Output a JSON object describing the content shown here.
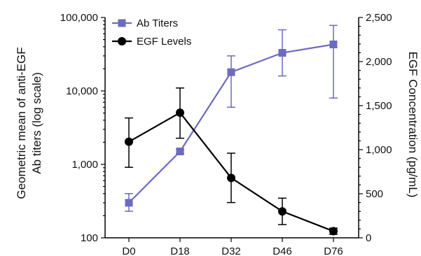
{
  "chart_data": {
    "type": "line",
    "categories": [
      "D0",
      "D18",
      "D32",
      "D46",
      "D76"
    ],
    "y_left": {
      "label_lines": [
        "Geometric mean of anti-EGF",
        "Ab titers (log scale)"
      ],
      "scale": "log",
      "range": [
        100,
        100000
      ],
      "ticks": [
        100,
        1000,
        10000,
        100000
      ],
      "tick_labels": [
        "100",
        "1,000",
        "10,000",
        "100,000"
      ]
    },
    "y_right": {
      "label": "EGF Concentration (pg/mL)",
      "scale": "linear",
      "range": [
        0,
        2500
      ],
      "ticks": [
        0,
        500,
        1000,
        1500,
        2000,
        2500
      ],
      "tick_labels": [
        "0",
        "500",
        "1,000",
        "1,500",
        "2,000",
        "2,500"
      ]
    },
    "series": [
      {
        "name": "Ab Titers",
        "axis": "left",
        "color": "#6b6bbf",
        "marker": "square",
        "values": [
          300,
          1500,
          18000,
          33000,
          43000
        ],
        "err_low": [
          230,
          1400,
          6000,
          16000,
          8000
        ],
        "err_high": [
          400,
          1600,
          30000,
          68000,
          78000
        ]
      },
      {
        "name": "EGF Levels",
        "axis": "right",
        "color": "#000000",
        "marker": "circle",
        "values": [
          1090,
          1420,
          680,
          300,
          75
        ],
        "err_low": [
          800,
          1130,
          400,
          150,
          40
        ],
        "err_high": [
          1360,
          1700,
          960,
          450,
          110
        ]
      }
    ],
    "legend": {
      "position": "top-left"
    },
    "grid": false
  }
}
